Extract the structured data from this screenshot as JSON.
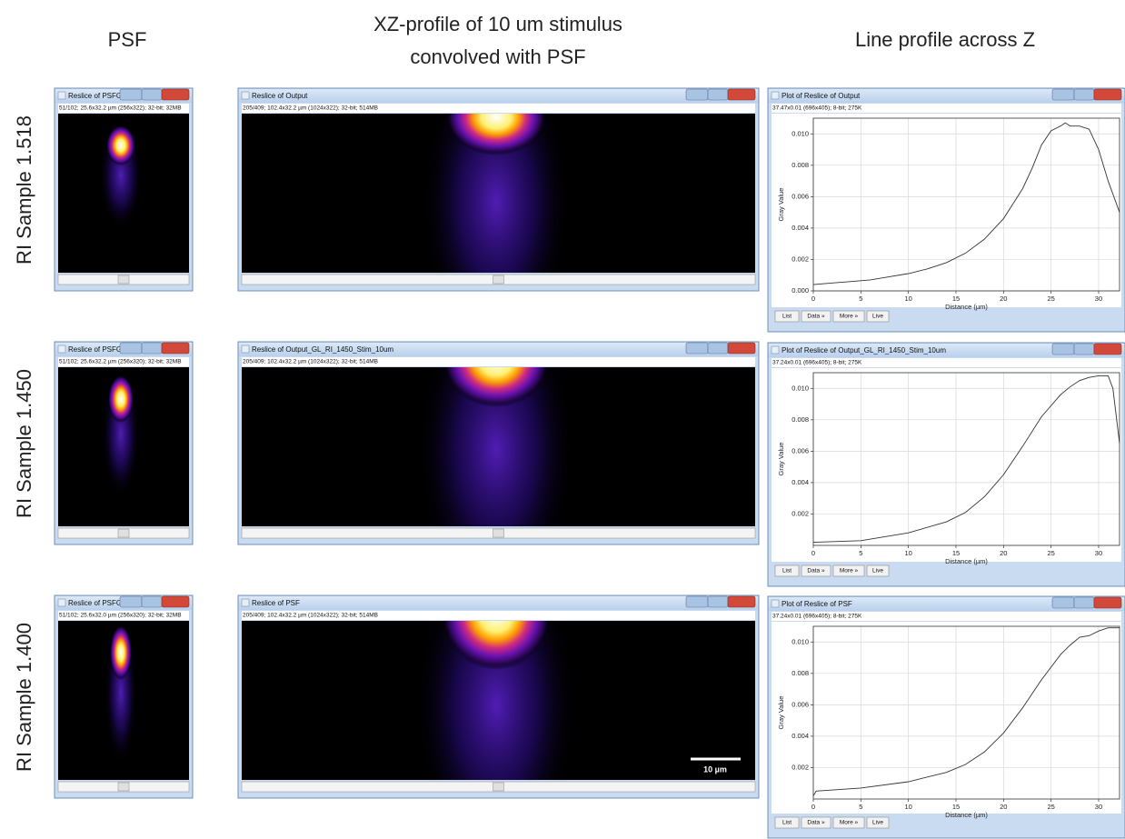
{
  "headers": {
    "psf": "PSF",
    "profile": [
      "XZ-profile of 10 um stimulus",
      "convolved with PSF"
    ],
    "line": "Line profile across Z"
  },
  "rows": [
    {
      "label": "RI Sample 1.518",
      "psf": {
        "title": "Reslice of PSFG...",
        "info": "51/102; 25.6x32.2 µm (256x322); 32-bit; 32MB"
      },
      "output": {
        "title": "Reslice of Output",
        "info": "205/409; 102.4x32.2 µm (1024x322); 32-bit; 514MB"
      },
      "plot": {
        "title": "Plot of Reslice of Output",
        "info": "37.47x0.01  (696x405); 8-bit; 275K",
        "buttons": [
          "List",
          "Data »",
          "More »",
          "Live"
        ],
        "chart": {
          "type": "line",
          "x_label": "Distance (µm)",
          "y_label": "Gray Value",
          "color": "#333333",
          "grid": true,
          "x": [
            0,
            2,
            4,
            6,
            8,
            10,
            12,
            14,
            16,
            18,
            20,
            22,
            23,
            24,
            25,
            26,
            26.5,
            27,
            28,
            29,
            30,
            31,
            32.2
          ],
          "values": [
            0.0004,
            0.0005,
            0.0006,
            0.0007,
            0.0009,
            0.0011,
            0.0014,
            0.0018,
            0.0024,
            0.0033,
            0.0046,
            0.0065,
            0.0078,
            0.0093,
            0.0102,
            0.0105,
            0.0107,
            0.0105,
            0.0105,
            0.0103,
            0.009,
            0.007,
            0.005
          ],
          "xlim": [
            0,
            32.2
          ],
          "ylim": [
            0,
            0.011
          ],
          "xticks": [
            0,
            5,
            10,
            15,
            20,
            25,
            30
          ],
          "yticks": [
            {
              "value": 0,
              "label": "0.000"
            },
            {
              "value": 0.002,
              "label": "0.002"
            },
            {
              "value": 0.004,
              "label": "0.004"
            },
            {
              "value": 0.006,
              "label": "0.006"
            },
            {
              "value": 0.008,
              "label": "0.008"
            },
            {
              "value": 0.01,
              "label": "0.010"
            }
          ]
        }
      }
    },
    {
      "label": "RI Sample 1.450",
      "psf": {
        "title": "Reslice of PSFG...",
        "info": "51/102; 25.6x32.2 µm (256x320); 32-bit; 32MB"
      },
      "output": {
        "title": "Reslice of Output_GL_RI_1450_Stim_10um",
        "info": "205/409; 102.4x32.2 µm (1024x322); 32-bit; 514MB"
      },
      "plot": {
        "title": "Plot of Reslice of Output_GL_RI_1450_Stim_10um",
        "info": "37.24x0.01  (696x405); 8-bit; 275K",
        "buttons": [
          "List",
          "Data »",
          "More »",
          "Live"
        ],
        "chart": {
          "type": "line",
          "x_label": "Distance (µm)",
          "y_label": "Gray Value",
          "color": "#333333",
          "grid": true,
          "x": [
            0,
            5,
            10,
            14,
            16,
            18,
            20,
            22,
            24,
            26,
            27,
            28,
            29,
            30,
            31,
            31.5,
            32.2
          ],
          "values": [
            0.0002,
            0.0003,
            0.0008,
            0.0015,
            0.0021,
            0.0031,
            0.0045,
            0.0063,
            0.0082,
            0.0096,
            0.0101,
            0.0105,
            0.0107,
            0.0108,
            0.0108,
            0.01,
            0.0065
          ],
          "xlim": [
            0,
            32.2
          ],
          "ylim": [
            0,
            0.011
          ],
          "xticks": [
            0,
            5,
            10,
            15,
            20,
            25,
            30
          ],
          "yticks": [
            {
              "value": 0.002,
              "label": "0.002"
            },
            {
              "value": 0.004,
              "label": "0.004"
            },
            {
              "value": 0.006,
              "label": "0.006"
            },
            {
              "value": 0.008,
              "label": "0.008"
            },
            {
              "value": 0.01,
              "label": "0.010"
            }
          ]
        }
      }
    },
    {
      "label": "RI Sample 1.400",
      "psf": {
        "title": "Reslice of PSFG...",
        "info": "51/102; 25.6x32.0 µm (256x320); 32-bit; 32MB"
      },
      "output": {
        "title": "Reslice of PSF",
        "info": "205/409; 102.4x32.2 µm (1024x322); 32-bit; 514MB"
      },
      "plot": {
        "title": "Plot of Reslice of PSF",
        "info": "37.24x0.01  (696x405); 8-bit; 275K",
        "buttons": [
          "List",
          "Data »",
          "More »",
          "Live"
        ],
        "chart": {
          "type": "line",
          "x_label": "Distance (µm)",
          "y_label": "Gray Value",
          "color": "#333333",
          "grid": true,
          "x": [
            0,
            0.3,
            5,
            10,
            14,
            16,
            18,
            20,
            22,
            24,
            26,
            27,
            28,
            29,
            30,
            31,
            32.2
          ],
          "values": [
            0.0002,
            0.0005,
            0.0007,
            0.0011,
            0.0017,
            0.0022,
            0.003,
            0.0042,
            0.0058,
            0.0076,
            0.0092,
            0.0098,
            0.0103,
            0.0104,
            0.0107,
            0.0109,
            0.0109
          ],
          "xlim": [
            0,
            32.2
          ],
          "ylim": [
            0,
            0.011
          ],
          "xticks": [
            0,
            5,
            10,
            15,
            20,
            25,
            30
          ],
          "yticks": [
            {
              "value": 0.002,
              "label": "0.002"
            },
            {
              "value": 0.004,
              "label": "0.004"
            },
            {
              "value": 0.006,
              "label": "0.006"
            },
            {
              "value": 0.008,
              "label": "0.008"
            },
            {
              "value": 0.01,
              "label": "0.010"
            }
          ]
        }
      }
    }
  ],
  "scale_bar": "10 µm"
}
